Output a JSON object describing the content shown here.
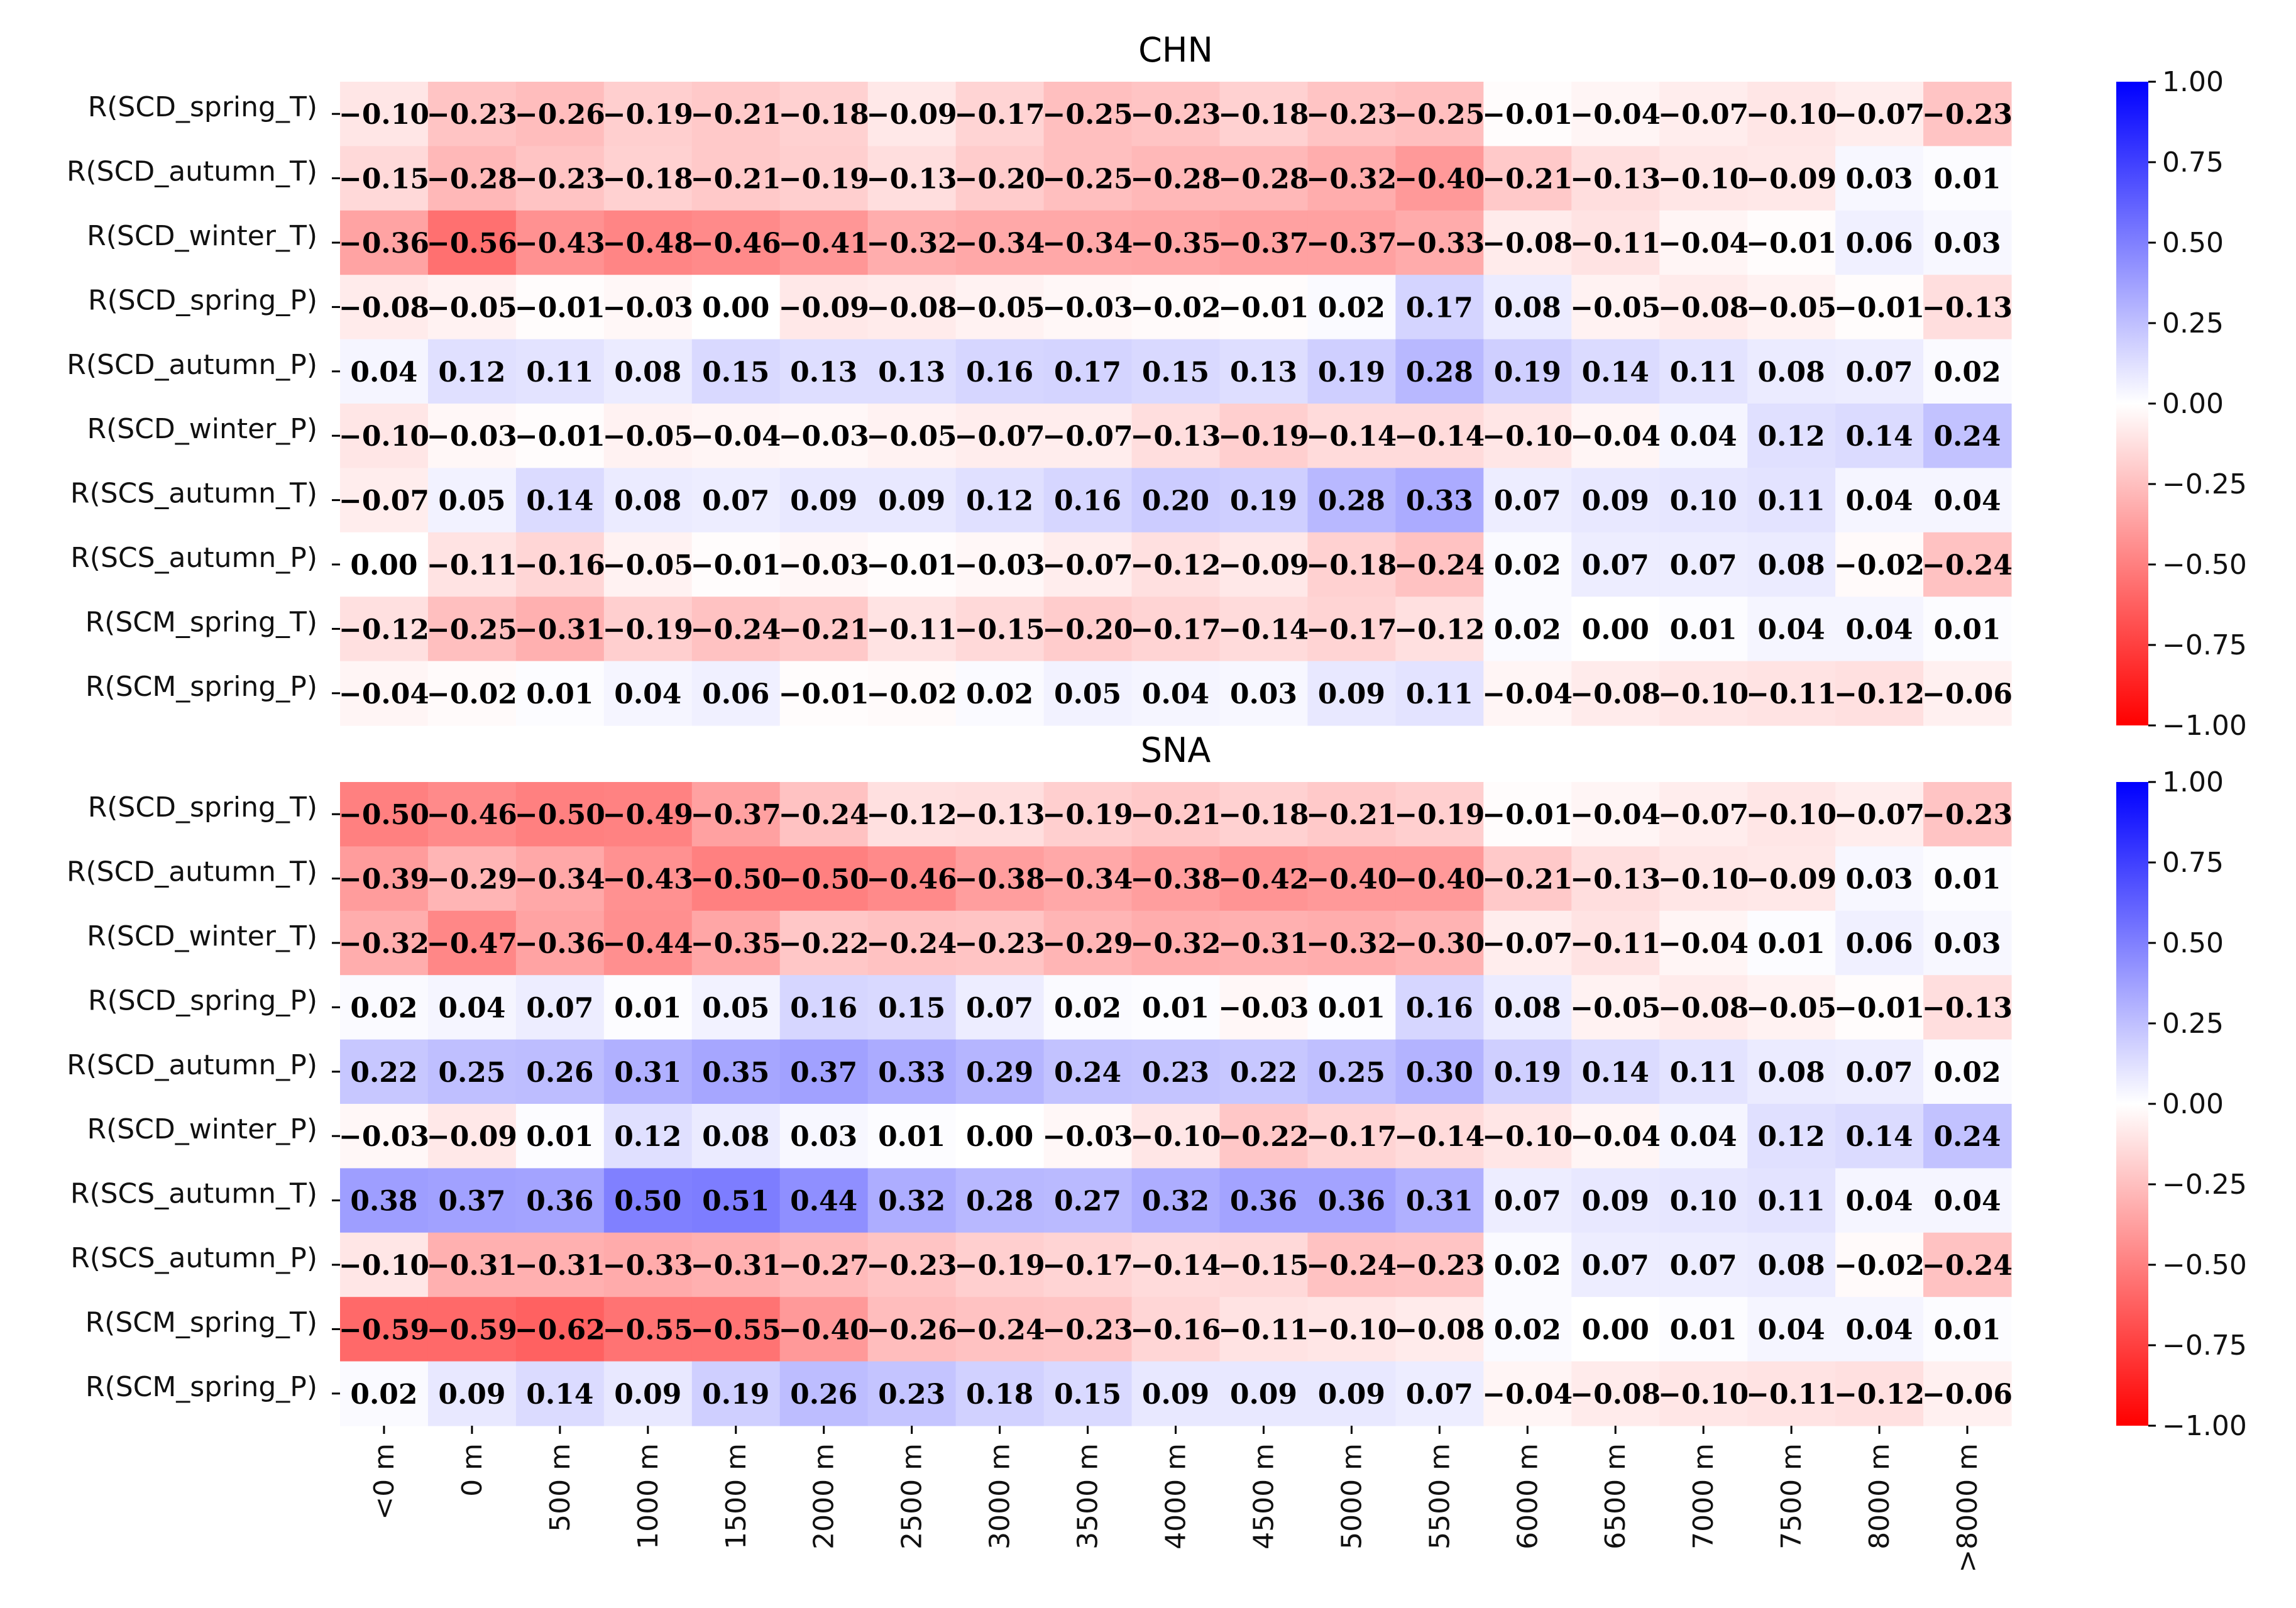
{
  "chart_data": [
    {
      "type": "heatmap",
      "title": "CHN",
      "columns": [
        "<0 m",
        "0 m",
        "500 m",
        "1000 m",
        "1500 m",
        "2000 m",
        "2500 m",
        "3000 m",
        "3500 m",
        "4000 m",
        "4500 m",
        "5000 m",
        "5500 m",
        "6000 m",
        "6500 m",
        "7000 m",
        "7500 m",
        "8000 m",
        ">8000 m"
      ],
      "rows": [
        "R(SCD_spring_T)",
        "R(SCD_autumn_T)",
        "R(SCD_winter_T)",
        "R(SCD_spring_P)",
        "R(SCD_autumn_P)",
        "R(SCD_winter_P)",
        "R(SCS_autumn_T)",
        "R(SCS_autumn_P)",
        "R(SCM_spring_T)",
        "R(SCM_spring_P)"
      ],
      "values": [
        [
          -0.1,
          -0.23,
          -0.26,
          -0.19,
          -0.21,
          -0.18,
          -0.09,
          -0.17,
          -0.25,
          -0.23,
          -0.18,
          -0.23,
          -0.25,
          -0.01,
          -0.04,
          -0.07,
          -0.1,
          -0.07,
          -0.23
        ],
        [
          -0.15,
          -0.28,
          -0.23,
          -0.18,
          -0.21,
          -0.19,
          -0.13,
          -0.2,
          -0.25,
          -0.28,
          -0.28,
          -0.32,
          -0.4,
          -0.21,
          -0.13,
          -0.1,
          -0.09,
          0.03,
          0.01
        ],
        [
          -0.36,
          -0.56,
          -0.43,
          -0.48,
          -0.46,
          -0.41,
          -0.32,
          -0.34,
          -0.34,
          -0.35,
          -0.37,
          -0.37,
          -0.33,
          -0.08,
          -0.11,
          -0.04,
          -0.01,
          0.06,
          0.03
        ],
        [
          -0.08,
          -0.05,
          -0.01,
          -0.03,
          0.0,
          -0.09,
          -0.08,
          -0.05,
          -0.03,
          -0.02,
          -0.01,
          0.02,
          0.17,
          0.08,
          -0.05,
          -0.08,
          -0.05,
          -0.01,
          -0.13
        ],
        [
          0.04,
          0.12,
          0.11,
          0.08,
          0.15,
          0.13,
          0.13,
          0.16,
          0.17,
          0.15,
          0.13,
          0.19,
          0.28,
          0.19,
          0.14,
          0.11,
          0.08,
          0.07,
          0.02
        ],
        [
          -0.1,
          -0.03,
          -0.01,
          -0.05,
          -0.04,
          -0.03,
          -0.05,
          -0.07,
          -0.07,
          -0.13,
          -0.19,
          -0.14,
          -0.14,
          -0.1,
          -0.04,
          0.04,
          0.12,
          0.14,
          0.24
        ],
        [
          -0.07,
          0.05,
          0.14,
          0.08,
          0.07,
          0.09,
          0.09,
          0.12,
          0.16,
          0.2,
          0.19,
          0.28,
          0.33,
          0.07,
          0.09,
          0.1,
          0.11,
          0.04,
          0.04
        ],
        [
          0.0,
          -0.11,
          -0.16,
          -0.05,
          -0.01,
          -0.03,
          -0.01,
          -0.03,
          -0.07,
          -0.12,
          -0.09,
          -0.18,
          -0.24,
          0.02,
          0.07,
          0.07,
          0.08,
          -0.02,
          -0.24
        ],
        [
          -0.12,
          -0.25,
          -0.31,
          -0.19,
          -0.24,
          -0.21,
          -0.11,
          -0.15,
          -0.2,
          -0.17,
          -0.14,
          -0.17,
          -0.12,
          0.02,
          0.0,
          0.01,
          0.04,
          0.04,
          0.01
        ],
        [
          -0.04,
          -0.02,
          0.01,
          0.04,
          0.06,
          -0.01,
          -0.02,
          0.02,
          0.05,
          0.04,
          0.03,
          0.09,
          0.11,
          -0.04,
          -0.08,
          -0.1,
          -0.11,
          -0.12,
          -0.06
        ]
      ],
      "colorbar": {
        "min": -1.0,
        "max": 1.0,
        "ticks": [
          "1.00",
          "0.75",
          "0.50",
          "0.25",
          "0.00",
          "−0.25",
          "−0.50",
          "−0.75",
          "−1.00"
        ],
        "colormap": "bwr_r"
      }
    },
    {
      "type": "heatmap",
      "title": "SNA",
      "columns": [
        "<0 m",
        "0 m",
        "500 m",
        "1000 m",
        "1500 m",
        "2000 m",
        "2500 m",
        "3000 m",
        "3500 m",
        "4000 m",
        "4500 m",
        "5000 m",
        "5500 m",
        "6000 m",
        "6500 m",
        "7000 m",
        "7500 m",
        "8000 m",
        ">8000 m"
      ],
      "rows": [
        "R(SCD_spring_T)",
        "R(SCD_autumn_T)",
        "R(SCD_winter_T)",
        "R(SCD_spring_P)",
        "R(SCD_autumn_P)",
        "R(SCD_winter_P)",
        "R(SCS_autumn_T)",
        "R(SCS_autumn_P)",
        "R(SCM_spring_T)",
        "R(SCM_spring_P)"
      ],
      "values": [
        [
          -0.5,
          -0.46,
          -0.5,
          -0.49,
          -0.37,
          -0.24,
          -0.12,
          -0.13,
          -0.19,
          -0.21,
          -0.18,
          -0.21,
          -0.19,
          -0.01,
          -0.04,
          -0.07,
          -0.1,
          -0.07,
          -0.23
        ],
        [
          -0.39,
          -0.29,
          -0.34,
          -0.43,
          -0.5,
          -0.5,
          -0.46,
          -0.38,
          -0.34,
          -0.38,
          -0.42,
          -0.4,
          -0.4,
          -0.21,
          -0.13,
          -0.1,
          -0.09,
          0.03,
          0.01
        ],
        [
          -0.32,
          -0.47,
          -0.36,
          -0.44,
          -0.35,
          -0.22,
          -0.24,
          -0.23,
          -0.29,
          -0.32,
          -0.31,
          -0.32,
          -0.3,
          -0.07,
          -0.11,
          -0.04,
          0.01,
          0.06,
          0.03
        ],
        [
          0.02,
          0.04,
          0.07,
          0.01,
          0.05,
          0.16,
          0.15,
          0.07,
          0.02,
          0.01,
          -0.03,
          0.01,
          0.16,
          0.08,
          -0.05,
          -0.08,
          -0.05,
          -0.01,
          -0.13
        ],
        [
          0.22,
          0.25,
          0.26,
          0.31,
          0.35,
          0.37,
          0.33,
          0.29,
          0.24,
          0.23,
          0.22,
          0.25,
          0.3,
          0.19,
          0.14,
          0.11,
          0.08,
          0.07,
          0.02
        ],
        [
          -0.03,
          -0.09,
          0.01,
          0.12,
          0.08,
          0.03,
          0.01,
          0.0,
          -0.03,
          -0.1,
          -0.22,
          -0.17,
          -0.14,
          -0.1,
          -0.04,
          0.04,
          0.12,
          0.14,
          0.24
        ],
        [
          0.38,
          0.37,
          0.36,
          0.5,
          0.51,
          0.44,
          0.32,
          0.28,
          0.27,
          0.32,
          0.36,
          0.36,
          0.31,
          0.07,
          0.09,
          0.1,
          0.11,
          0.04,
          0.04
        ],
        [
          -0.1,
          -0.31,
          -0.31,
          -0.33,
          -0.31,
          -0.27,
          -0.23,
          -0.19,
          -0.17,
          -0.14,
          -0.15,
          -0.24,
          -0.23,
          0.02,
          0.07,
          0.07,
          0.08,
          -0.02,
          -0.24
        ],
        [
          -0.59,
          -0.59,
          -0.62,
          -0.55,
          -0.55,
          -0.4,
          -0.26,
          -0.24,
          -0.23,
          -0.16,
          -0.11,
          -0.1,
          -0.08,
          0.02,
          0.0,
          0.01,
          0.04,
          0.04,
          0.01
        ],
        [
          0.02,
          0.09,
          0.14,
          0.09,
          0.19,
          0.26,
          0.23,
          0.18,
          0.15,
          0.09,
          0.09,
          0.09,
          0.07,
          -0.04,
          -0.08,
          -0.1,
          -0.11,
          -0.12,
          -0.06
        ]
      ],
      "colorbar": {
        "min": -1.0,
        "max": 1.0,
        "ticks": [
          "1.00",
          "0.75",
          "0.50",
          "0.25",
          "0.00",
          "−0.25",
          "−0.50",
          "−0.75",
          "−1.00"
        ],
        "colormap": "bwr_r"
      }
    }
  ]
}
